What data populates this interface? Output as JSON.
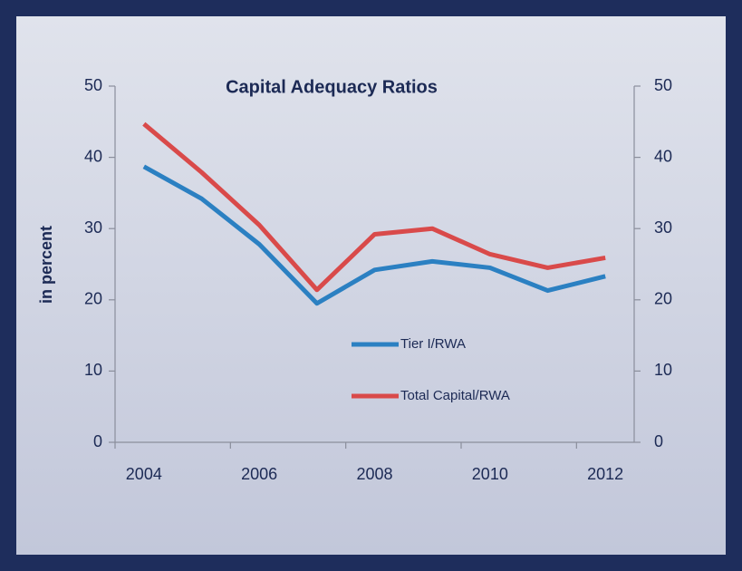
{
  "chart_data": {
    "type": "line",
    "title": "Capital Adequacy Ratios",
    "y_label": "in percent",
    "categories": [
      "2004",
      null,
      "2006",
      null,
      "2008",
      null,
      "2010",
      null,
      "2012"
    ],
    "series": [
      {
        "name": "Tier I/RWA",
        "color": "#2b80c2",
        "values": [
          38.7,
          34.2,
          27.8,
          19.5,
          24.2,
          25.4,
          24.5,
          21.3,
          23.3
        ]
      },
      {
        "name": "Total Capital/RWA",
        "color": "#d94a4a",
        "values": [
          44.7,
          37.9,
          30.5,
          21.4,
          29.2,
          30.0,
          26.4,
          24.5,
          25.9
        ]
      }
    ],
    "ylim": [
      0,
      50
    ],
    "yticks": [
      0,
      10,
      20,
      30,
      40,
      50
    ],
    "y2lim": [
      0,
      50
    ],
    "y2ticks": [
      0,
      10,
      20,
      30,
      40,
      50
    ]
  }
}
